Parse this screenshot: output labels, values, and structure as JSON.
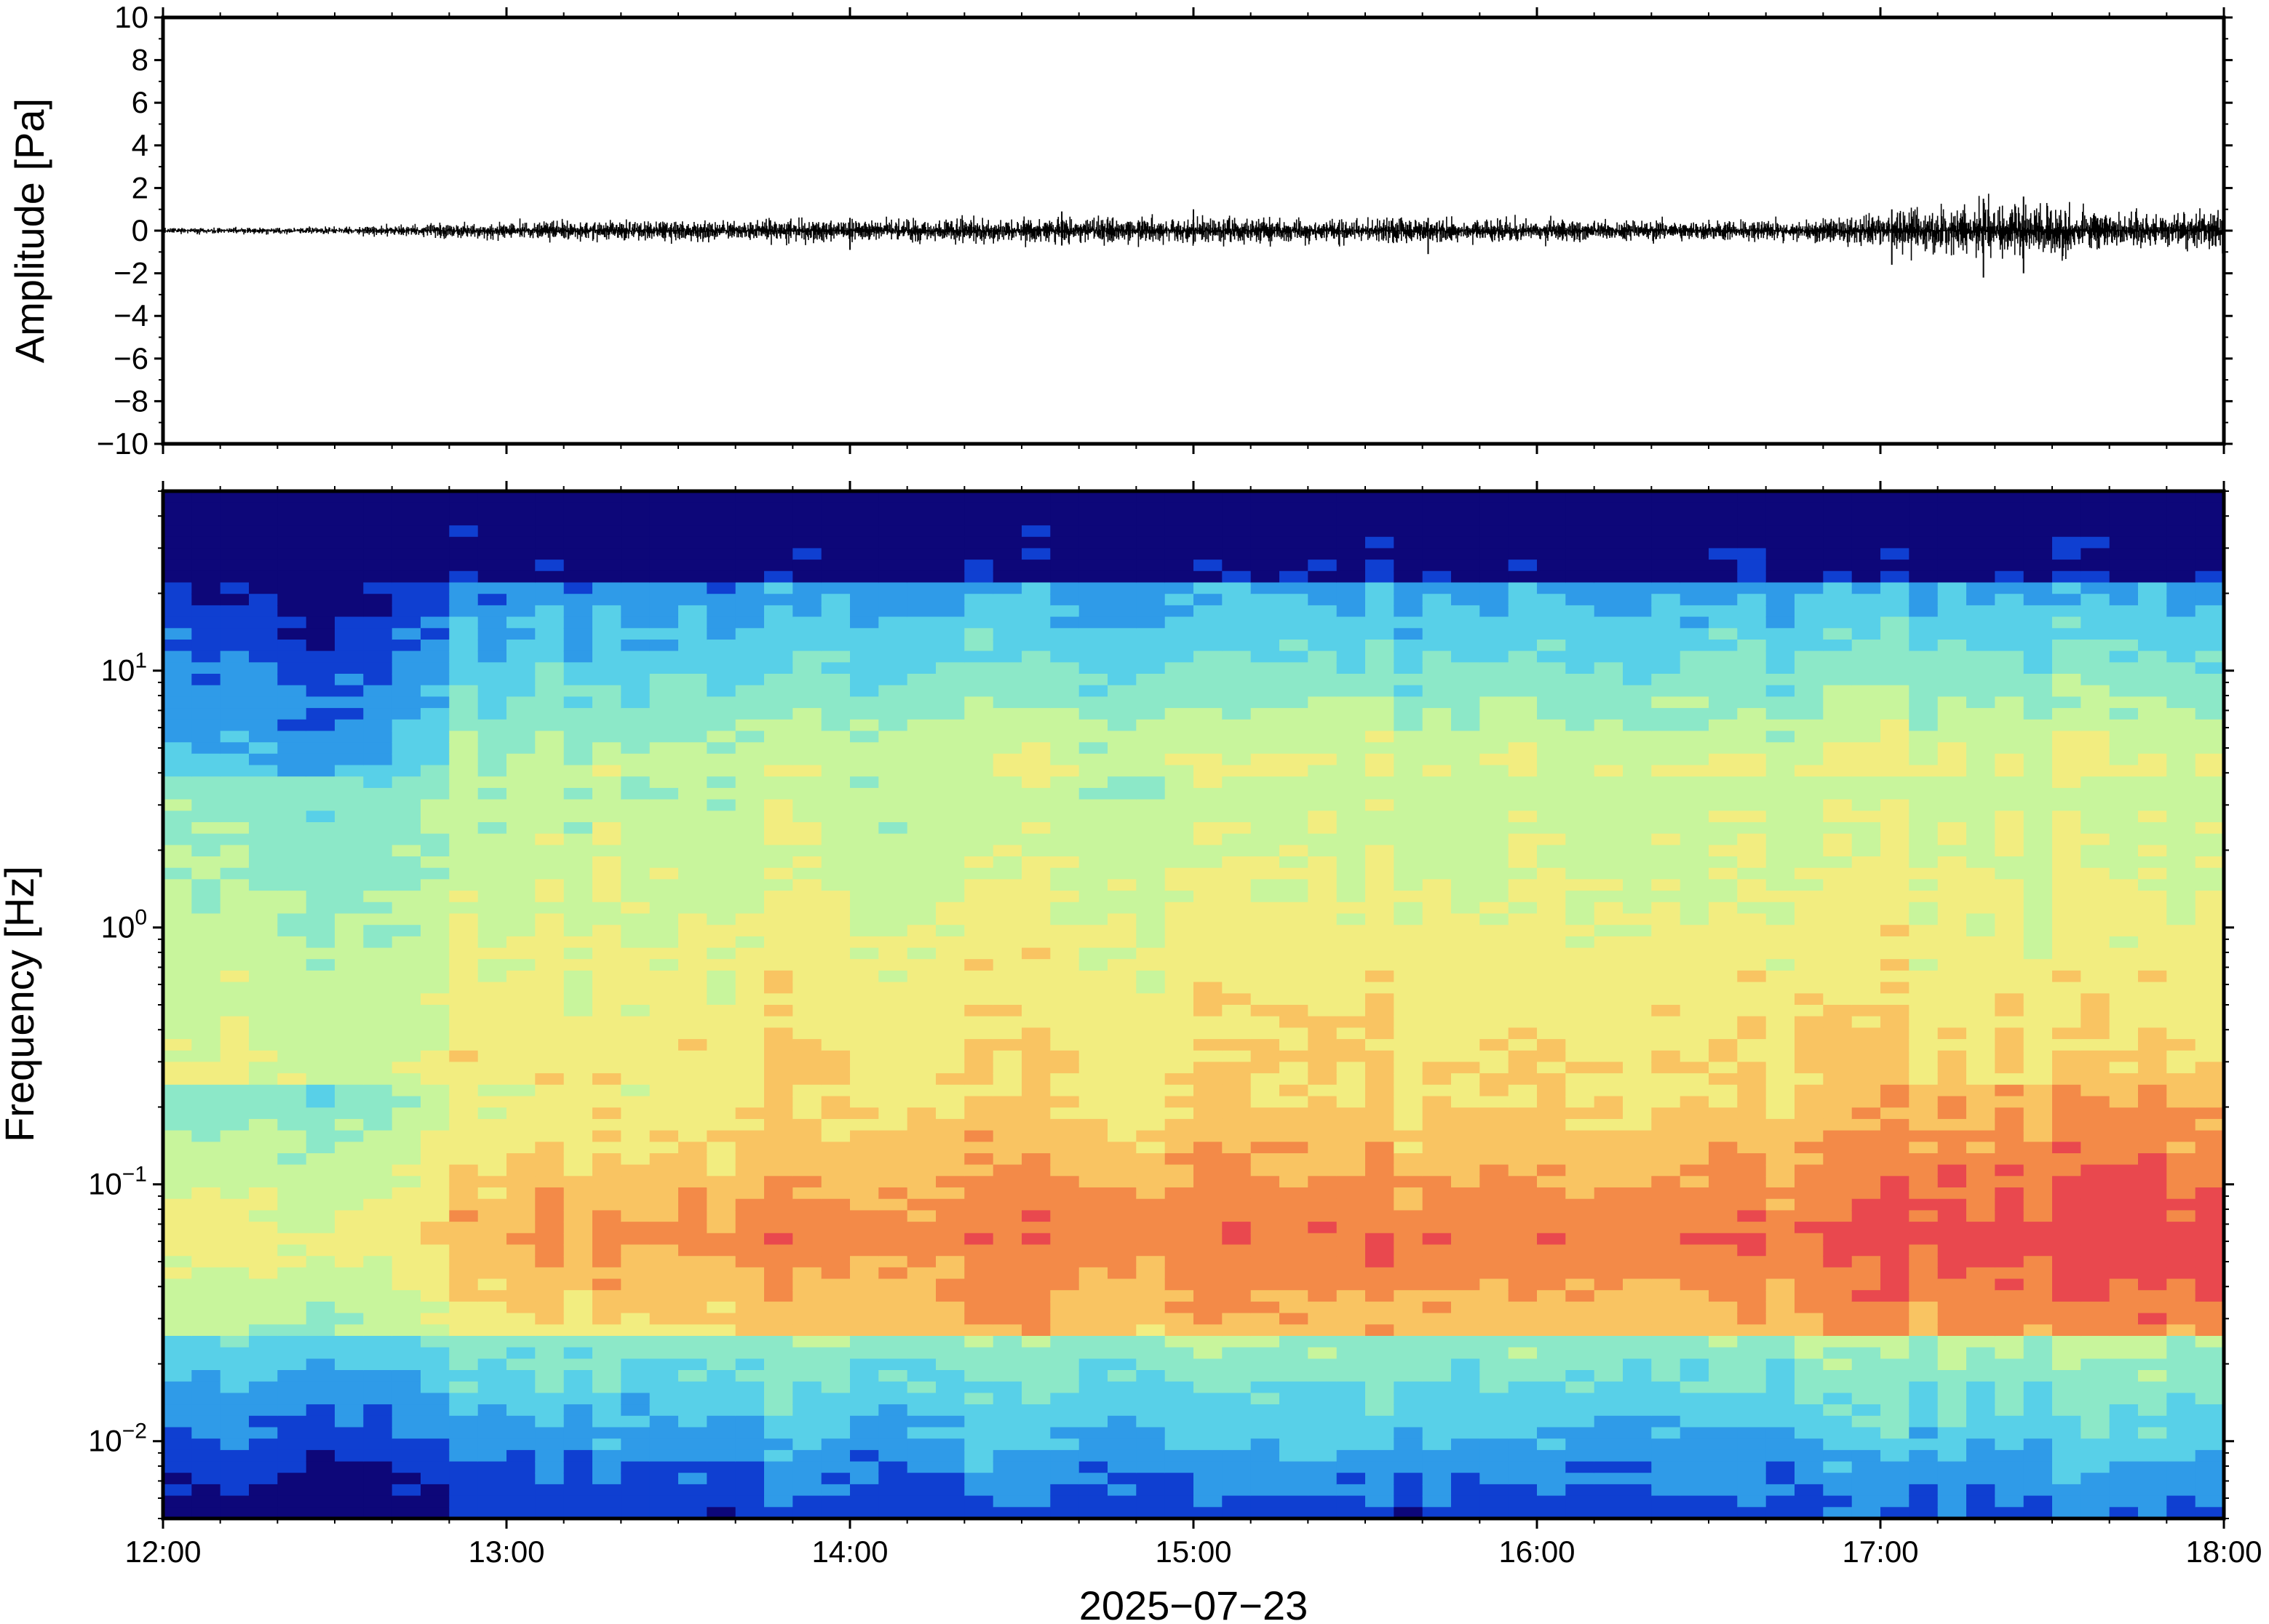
{
  "chart_data": [
    {
      "type": "line",
      "panel": "waveform",
      "ylabel": "Amplitude [Pa]",
      "ylim": [
        -10,
        10
      ],
      "yticks": [
        10,
        8,
        6,
        4,
        2,
        0,
        -2,
        -4,
        -6,
        -8,
        -10
      ],
      "ytick_labels": [
        "10",
        "8",
        "6",
        "4",
        "2",
        "0",
        "−2",
        "−4",
        "−6",
        "−8",
        "−10"
      ],
      "x_range": [
        "12:00",
        "18:00"
      ],
      "line_color": "#000000",
      "envelope": {
        "x_hours": [
          12.0,
          12.5,
          12.7,
          13.0,
          13.5,
          14.0,
          14.5,
          15.0,
          15.5,
          16.0,
          16.5,
          16.8,
          17.0,
          17.2,
          17.4,
          17.6,
          18.0
        ],
        "amplitude_pa": [
          0.12,
          0.15,
          0.25,
          0.4,
          0.45,
          0.5,
          0.55,
          0.6,
          0.55,
          0.5,
          0.45,
          0.5,
          0.8,
          1.0,
          1.2,
          0.9,
          0.8
        ]
      },
      "peaks": [
        {
          "x": "14:00",
          "min": -0.9,
          "max": 0.6
        },
        {
          "x": "14:37",
          "min": -0.7,
          "max": 0.9
        },
        {
          "x": "15:00",
          "min": -0.6,
          "max": 1.0
        },
        {
          "x": "15:41",
          "min": -1.1,
          "max": 0.6
        },
        {
          "x": "17:02",
          "min": -1.6,
          "max": 1.0
        },
        {
          "x": "17:18",
          "min": -2.2,
          "max": 1.5
        },
        {
          "x": "17:25",
          "min": -2.0,
          "max": 1.6
        }
      ]
    },
    {
      "type": "heatmap",
      "panel": "spectrogram",
      "ylabel": "Frequency [Hz]",
      "xlabel": "2025−07−23",
      "y_scale": "log",
      "ylim_hz": [
        0.005,
        50
      ],
      "yticks_hz": [
        10,
        1,
        0.1,
        0.01
      ],
      "ytick_labels": [
        {
          "base": "10",
          "exp": "1"
        },
        {
          "base": "10",
          "exp": "0"
        },
        {
          "base": "10",
          "exp": "−1"
        },
        {
          "base": "10",
          "exp": "−2"
        }
      ],
      "xticks": [
        "12:00",
        "13:00",
        "14:00",
        "15:00",
        "16:00",
        "17:00",
        "18:00"
      ],
      "colormap": [
        "#0d0779",
        "#0f3fd1",
        "#2f9be8",
        "#58d0e8",
        "#8ce8c8",
        "#c8f59c",
        "#f2ed80",
        "#f9c462",
        "#f38a48",
        "#e9484e"
      ],
      "relative_power": {
        "x_hours": [
          12.0,
          12.5,
          12.9,
          13.5,
          14.5,
          15.5,
          16.5,
          17.2,
          17.8,
          18.0
        ],
        "high_freq_level": [
          0.15,
          0.08,
          0.35,
          0.42,
          0.44,
          0.46,
          0.46,
          0.5,
          0.48,
          0.45
        ],
        "microbarom_level": [
          0.62,
          0.62,
          0.78,
          0.84,
          0.88,
          0.88,
          0.88,
          0.96,
          0.98,
          0.95
        ]
      }
    }
  ]
}
